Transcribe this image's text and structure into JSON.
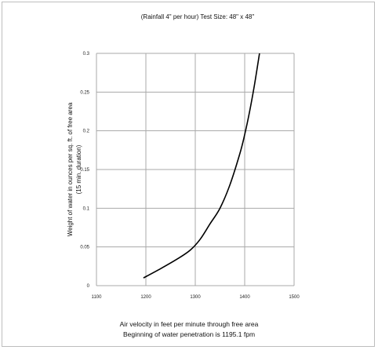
{
  "chart_data": {
    "type": "line",
    "title": "(Rainfall 4\" per hour) Test Size: 48\" x 48\"",
    "xlabel": "Air velocity in feet per minute through free area",
    "xlabel_note": "Beginning of water penetration is 1195.1 fpm",
    "ylabel": "Weight of water in ounces per sq. ft. of free area",
    "ylabel_note": "(15 min. duration)",
    "xlim": [
      1100,
      1500
    ],
    "ylim": [
      0,
      0.3
    ],
    "x_ticks": [
      1100,
      1200,
      1300,
      1400,
      1500
    ],
    "x_tick_labels": [
      "1100",
      "1200",
      "1300",
      "1400",
      "1500"
    ],
    "y_ticks": [
      0,
      0.05,
      0.1,
      0.15,
      0.2,
      0.25,
      0.3
    ],
    "y_tick_labels": [
      "0",
      "0.05",
      "0.1",
      "0.15",
      "0.2",
      "0.25",
      "0.3"
    ],
    "grid": true,
    "series": [
      {
        "color": "#000000",
        "x": [
          1195.1,
          1230,
          1265,
          1290,
          1310,
          1330,
          1350,
          1370,
          1390,
          1400,
          1410,
          1420,
          1430
        ],
        "y": [
          0.01,
          0.022,
          0.035,
          0.046,
          0.06,
          0.08,
          0.1,
          0.13,
          0.17,
          0.195,
          0.225,
          0.26,
          0.3
        ]
      }
    ]
  }
}
